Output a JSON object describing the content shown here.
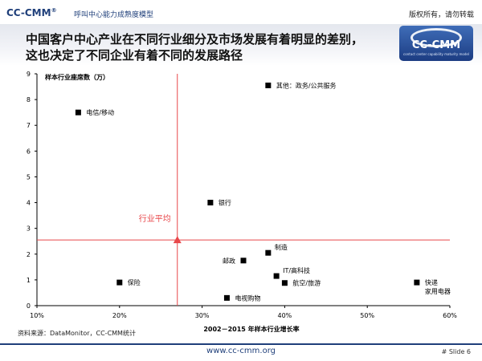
{
  "header": {
    "brand": "CC-CMM",
    "brand_mark": "®",
    "subtitle": "呼叫中心能力成熟度模型",
    "copyright": "版权所有，请勿转载"
  },
  "title": {
    "line1": "中国客户中心产业在不同行业细分及市场发展有着明显的差别，",
    "line2": "这也决定了不同企业有着不同的发展路径"
  },
  "logo": {
    "text": "CC-CMM",
    "tagline": "contact center capability maturity model"
  },
  "chart_data": {
    "type": "scatter",
    "ylabel": "样本行业座席数（万）",
    "xlabel": "2002－2015 年样本行业增长率",
    "xlim": [
      0.1,
      0.6
    ],
    "ylim": [
      0,
      9
    ],
    "x_ticks": [
      0.1,
      0.2,
      0.3,
      0.4,
      0.5,
      0.6
    ],
    "x_tick_labels": [
      "10%",
      "20%",
      "30%",
      "40%",
      "50%",
      "60%"
    ],
    "y_ticks": [
      0,
      1,
      2,
      3,
      4,
      5,
      6,
      7,
      8,
      9
    ],
    "y_tick_labels": [
      "0",
      "1",
      "2",
      "3",
      "4",
      "5",
      "6",
      "7",
      "8",
      "9"
    ],
    "grid": false,
    "average": {
      "x": 0.27,
      "y": 2.55,
      "label": "行业平均",
      "color": "#e8474a"
    },
    "points": [
      {
        "label": "电信/移动",
        "x": 0.15,
        "y": 7.5,
        "label_pos": "right"
      },
      {
        "label": "其他：政务/公共服务",
        "x": 0.38,
        "y": 8.55,
        "label_pos": "right"
      },
      {
        "label": "银行",
        "x": 0.31,
        "y": 4.0,
        "label_pos": "right"
      },
      {
        "label": "保险",
        "x": 0.2,
        "y": 0.9,
        "label_pos": "right"
      },
      {
        "label": "邮政",
        "x": 0.35,
        "y": 1.75,
        "label_pos": "left"
      },
      {
        "label": "制造",
        "x": 0.38,
        "y": 2.05,
        "label_pos": "upper-right"
      },
      {
        "label": "IT/高科技",
        "x": 0.39,
        "y": 1.15,
        "label_pos": "upper-right"
      },
      {
        "label": "航空/旅游",
        "x": 0.4,
        "y": 0.88,
        "label_pos": "right"
      },
      {
        "label": "电视购物",
        "x": 0.33,
        "y": 0.3,
        "label_pos": "right"
      },
      {
        "label": "快递",
        "label2": "家用电器",
        "x": 0.56,
        "y": 0.9,
        "label_pos": "right"
      }
    ],
    "marker_color": "#000000"
  },
  "footer": {
    "source": "资料来源：DataMonitor，CC-CMM统计",
    "url": "www.cc-cmm.org",
    "slide": "# Slide  6"
  }
}
